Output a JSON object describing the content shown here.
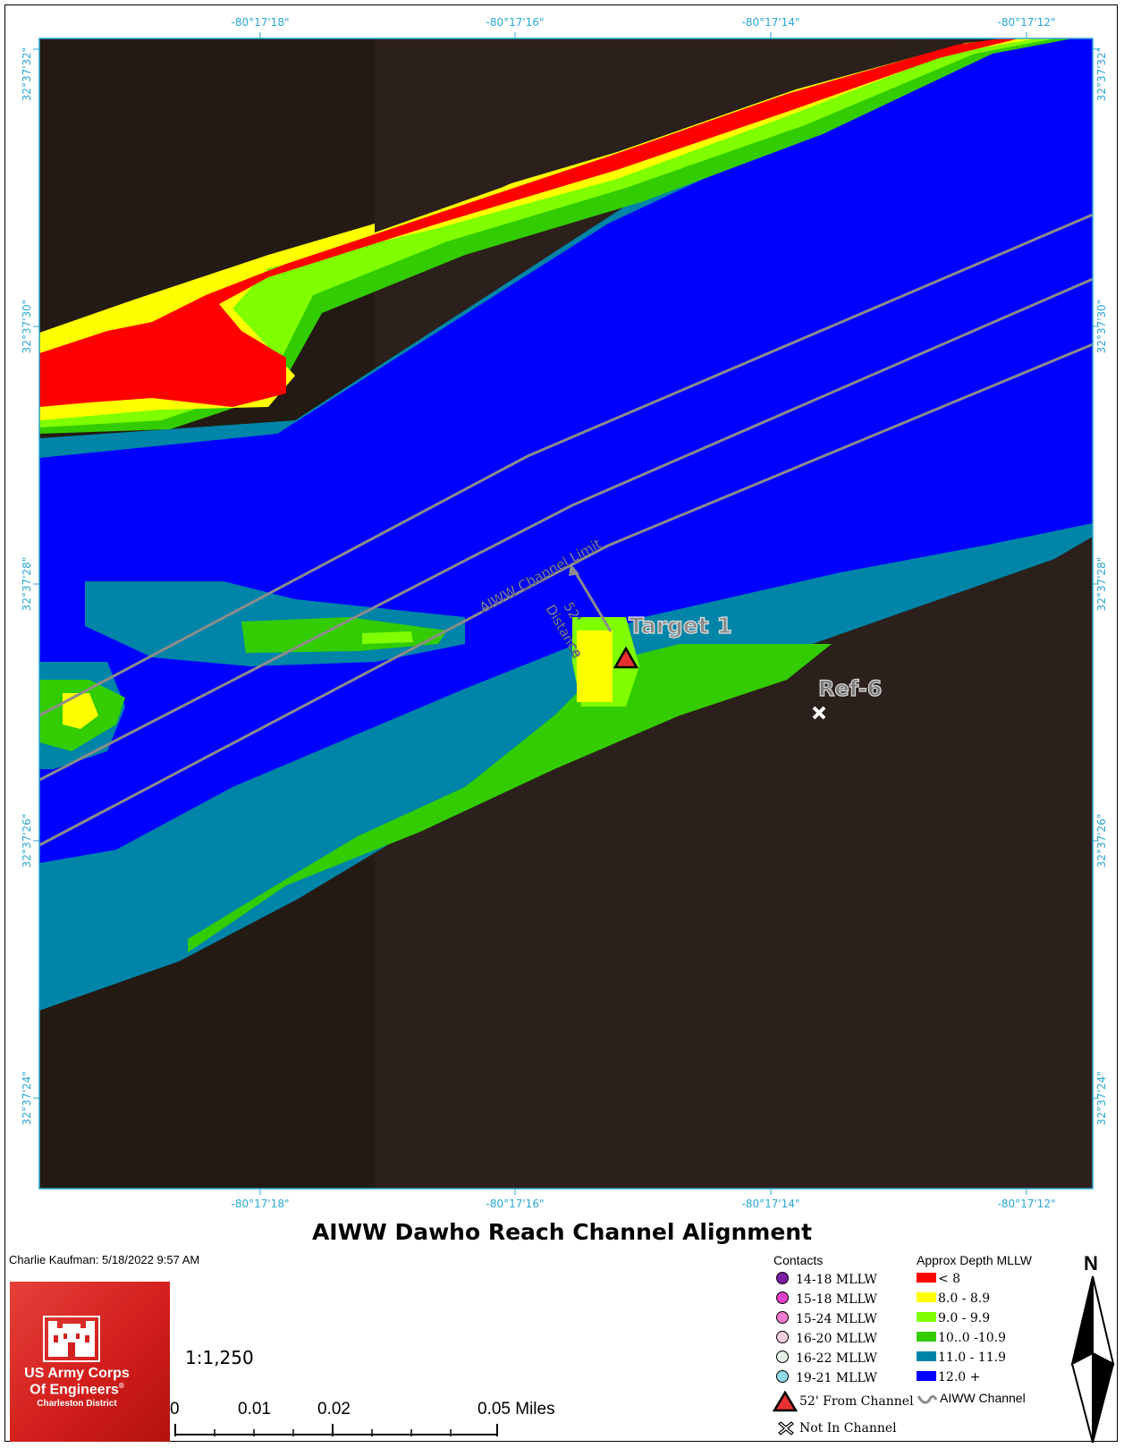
{
  "map": {
    "title": "AIWW Dawho Reach Channel Alignment",
    "author_line": "Charlie Kaufman:  5/18/2022 9:57 AM",
    "scale_ratio": "1:1,250",
    "top_longitudes": [
      "-80°17'18\"",
      "-80°17'16\"",
      "-80°17'14\"",
      "-80°17'12\""
    ],
    "bottom_longitudes": [
      "-80°17'18\"",
      "-80°17'16\"",
      "-80°17'14\"",
      "-80°17'12\""
    ],
    "left_latitudes": [
      "32°37'32\"",
      "32°37'30\"",
      "32°37'28\"",
      "32°37'26\"",
      "32°37'24\""
    ],
    "right_latitudes": [
      "32°37'32\"",
      "32°37'30\"",
      "32°37'28\"",
      "32°37'26\"",
      "32°37'24\""
    ]
  },
  "labels": {
    "channel_limit": "AIWW Channel Limit",
    "distance_line1": "52'",
    "distance_line2": "Distance",
    "target": "Target 1",
    "reference": "Ref-6"
  },
  "scalebar": {
    "labels": [
      "0",
      "0.01",
      "0.02",
      "0.05 Miles"
    ]
  },
  "logo": {
    "line1": "US Army Corps",
    "line2": "Of Engineers",
    "mark": "®",
    "line3": "Charleston District"
  },
  "legend": {
    "contacts_title": "Contacts",
    "contacts": [
      {
        "label": "14-18 MLLW",
        "color": "#7a1fa2"
      },
      {
        "label": "15-18 MLLW",
        "color": "#e040c8"
      },
      {
        "label": "15-24 MLLW",
        "color": "#f07ad0"
      },
      {
        "label": "16-20 MLLW",
        "color": "#f8d0dc"
      },
      {
        "label": "16-22 MLLW",
        "color": "#e6f2e6"
      },
      {
        "label": "19-21 MLLW",
        "color": "#8fd8e8"
      }
    ],
    "triangle_label": "52' From Channel",
    "x_label": "Not In Channel",
    "depth_title": "Approx Depth MLLW",
    "depths": [
      {
        "label": "< 8",
        "color": "#ff0000"
      },
      {
        "label": "8.0 - 8.9",
        "color": "#ffff00"
      },
      {
        "label": "9.0 - 9.9",
        "color": "#7fff00"
      },
      {
        "label": "10..0 -10.9",
        "color": "#33cc00"
      },
      {
        "label": "11.0 - 11.9",
        "color": "#0085a8"
      },
      {
        "label": "12.0 +",
        "color": "#0000ff"
      }
    ],
    "channel_label": "AIWW Channel"
  },
  "north_arrow": {
    "label": "N"
  },
  "colors": {
    "land": "#2a1f1a",
    "tick_text": "#2aa7d1",
    "channel_line": "#8c8c8c"
  }
}
